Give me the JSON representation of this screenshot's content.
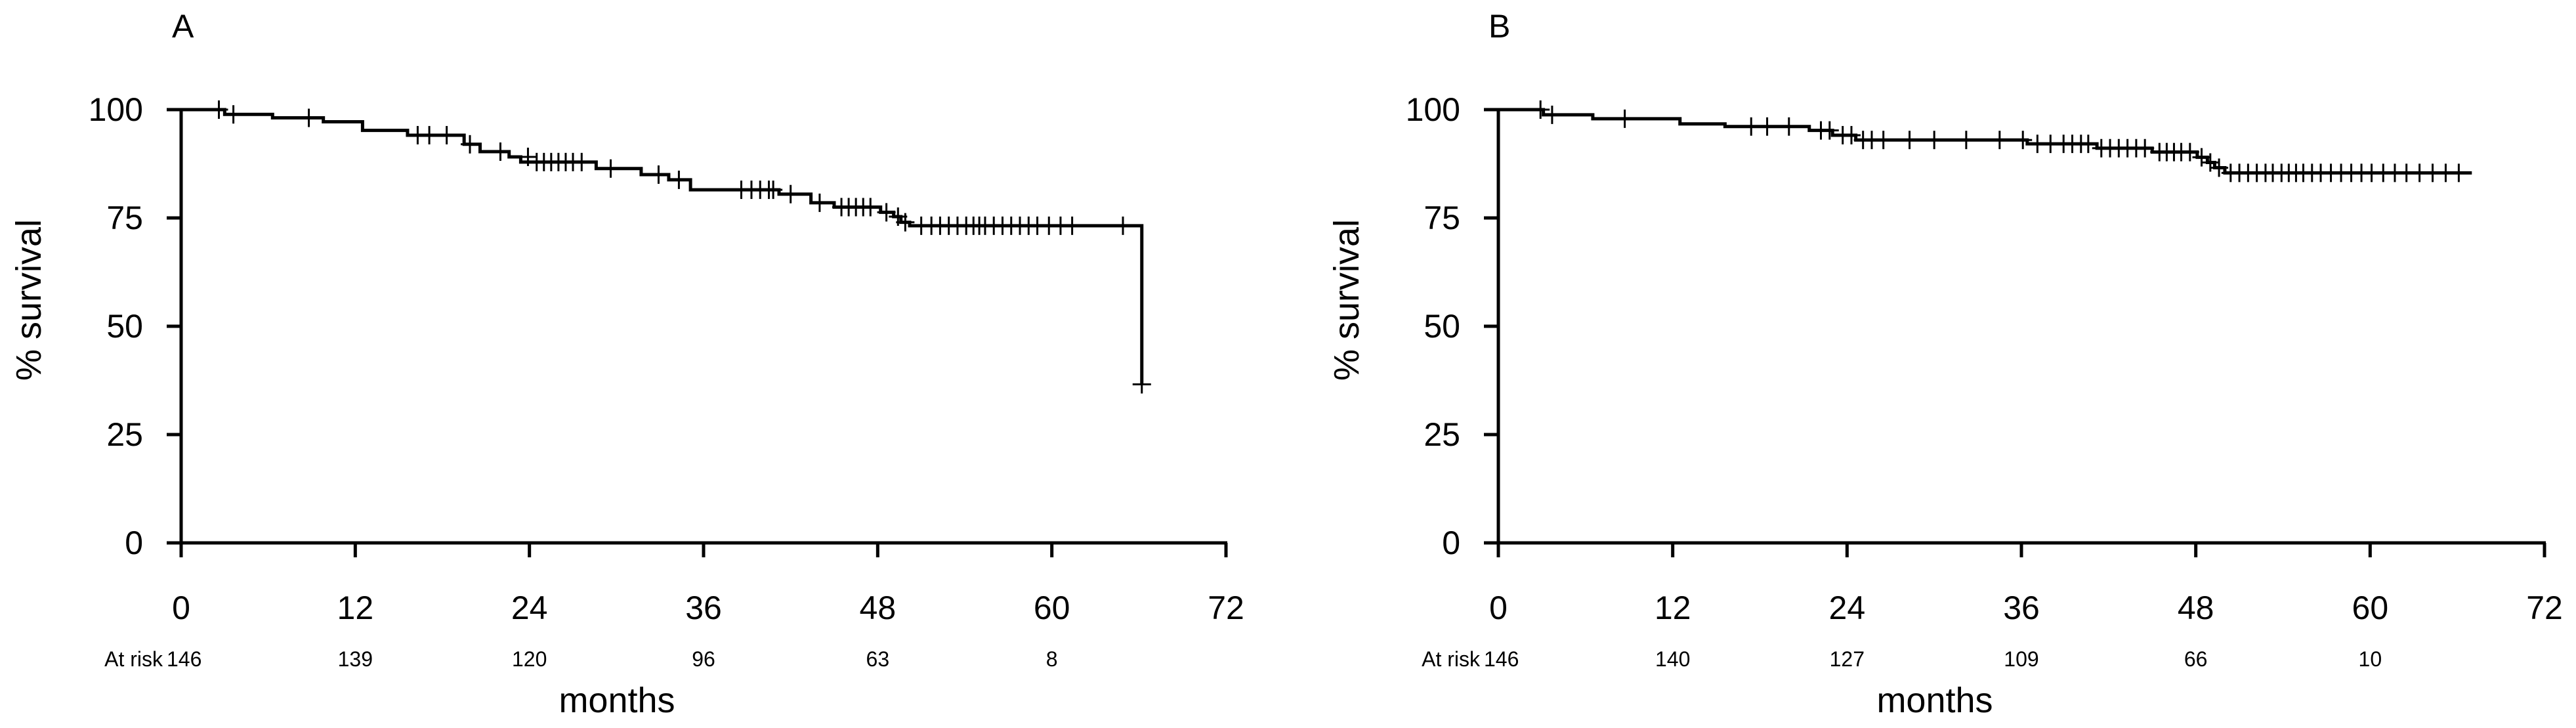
{
  "chart_data": [
    {
      "type": "line",
      "panel_label": "A",
      "ylabel": "% survival",
      "xlabel": "months",
      "xlim": [
        0,
        72
      ],
      "ylim": [
        0,
        100
      ],
      "x_ticks": [
        0,
        12,
        24,
        36,
        48,
        60,
        72
      ],
      "y_ticks": [
        0,
        25,
        50,
        75,
        100
      ],
      "risk_label": "At risk",
      "at_risk": [
        {
          "x": 0,
          "n": "146"
        },
        {
          "x": 12,
          "n": "139"
        },
        {
          "x": 24,
          "n": "120"
        },
        {
          "x": 36,
          "n": "96"
        },
        {
          "x": 48,
          "n": "63"
        },
        {
          "x": 60,
          "n": "8"
        }
      ],
      "steps": [
        [
          0,
          100
        ],
        [
          3.0,
          98.9
        ],
        [
          6.3,
          98.1
        ],
        [
          9.8,
          97.2
        ],
        [
          12.5,
          95.2
        ],
        [
          15.6,
          94.1
        ],
        [
          19.5,
          92.0
        ],
        [
          20.6,
          90.3
        ],
        [
          22.6,
          89.1
        ],
        [
          23.4,
          87.9
        ],
        [
          28.6,
          86.4
        ],
        [
          31.7,
          85.0
        ],
        [
          33.6,
          83.8
        ],
        [
          35.1,
          81.5
        ],
        [
          41.2,
          80.5
        ],
        [
          43.4,
          78.5
        ],
        [
          45.0,
          77.5
        ],
        [
          48.2,
          76.3
        ],
        [
          49.1,
          75.3
        ],
        [
          49.6,
          74.0
        ],
        [
          50.2,
          73.2
        ],
        [
          66.2,
          36.6
        ]
      ],
      "end_x": 66.2,
      "censor_marks": [
        [
          2.6,
          100
        ],
        [
          3.6,
          98.9
        ],
        [
          8.8,
          98.1
        ],
        [
          16.3,
          94.1
        ],
        [
          17.1,
          94.1
        ],
        [
          18.3,
          94.1
        ],
        [
          19.9,
          92.0
        ],
        [
          22.0,
          90.3
        ],
        [
          23.9,
          89.1
        ],
        [
          24.5,
          87.9
        ],
        [
          25.0,
          87.9
        ],
        [
          25.5,
          87.9
        ],
        [
          26.0,
          87.9
        ],
        [
          26.5,
          87.9
        ],
        [
          27.0,
          87.9
        ],
        [
          27.6,
          87.9
        ],
        [
          29.6,
          86.4
        ],
        [
          32.9,
          85.0
        ],
        [
          34.3,
          83.8
        ],
        [
          38.6,
          81.5
        ],
        [
          39.3,
          81.5
        ],
        [
          39.9,
          81.5
        ],
        [
          40.5,
          81.5
        ],
        [
          40.8,
          81.5
        ],
        [
          42.0,
          80.5
        ],
        [
          44.0,
          78.5
        ],
        [
          45.5,
          77.5
        ],
        [
          46.0,
          77.5
        ],
        [
          46.5,
          77.5
        ],
        [
          47.0,
          77.5
        ],
        [
          47.5,
          77.5
        ],
        [
          48.6,
          76.3
        ],
        [
          49.4,
          75.3
        ],
        [
          49.9,
          74.0
        ],
        [
          51.0,
          73.2
        ],
        [
          51.7,
          73.2
        ],
        [
          52.3,
          73.2
        ],
        [
          52.9,
          73.2
        ],
        [
          53.5,
          73.2
        ],
        [
          54.1,
          73.2
        ],
        [
          54.6,
          73.2
        ],
        [
          55.0,
          73.2
        ],
        [
          55.4,
          73.2
        ],
        [
          56.0,
          73.2
        ],
        [
          56.6,
          73.2
        ],
        [
          57.2,
          73.2
        ],
        [
          57.8,
          73.2
        ],
        [
          58.4,
          73.2
        ],
        [
          59.0,
          73.2
        ],
        [
          59.8,
          73.2
        ],
        [
          60.6,
          73.2
        ],
        [
          61.4,
          73.2
        ],
        [
          64.9,
          73.2
        ],
        [
          66.2,
          36.6
        ]
      ]
    },
    {
      "type": "line",
      "panel_label": "B",
      "ylabel": "% survival",
      "xlabel": "months",
      "xlim": [
        0,
        72
      ],
      "ylim": [
        0,
        100
      ],
      "x_ticks": [
        0,
        12,
        24,
        36,
        48,
        60,
        72
      ],
      "y_ticks": [
        0,
        25,
        50,
        75,
        100
      ],
      "risk_label": "At risk",
      "at_risk": [
        {
          "x": 0,
          "n": "146"
        },
        {
          "x": 12,
          "n": "140"
        },
        {
          "x": 24,
          "n": "127"
        },
        {
          "x": 36,
          "n": "109"
        },
        {
          "x": 48,
          "n": "66"
        },
        {
          "x": 60,
          "n": "10"
        }
      ],
      "steps": [
        [
          0,
          100
        ],
        [
          3.1,
          98.8
        ],
        [
          6.5,
          97.9
        ],
        [
          12.5,
          96.7
        ],
        [
          15.6,
          96.1
        ],
        [
          21.4,
          95.2
        ],
        [
          23.0,
          94.1
        ],
        [
          24.6,
          93.0
        ],
        [
          36.4,
          92.1
        ],
        [
          41.2,
          91.1
        ],
        [
          45.0,
          90.2
        ],
        [
          48.1,
          89.0
        ],
        [
          48.8,
          87.8
        ],
        [
          49.3,
          86.6
        ],
        [
          50.0,
          85.4
        ]
      ],
      "end_x": 67.0,
      "censor_marks": [
        [
          2.9,
          100
        ],
        [
          3.7,
          98.8
        ],
        [
          8.7,
          97.9
        ],
        [
          17.4,
          96.1
        ],
        [
          18.5,
          96.1
        ],
        [
          20.0,
          96.1
        ],
        [
          22.2,
          95.2
        ],
        [
          22.8,
          95.2
        ],
        [
          23.7,
          94.1
        ],
        [
          24.3,
          94.1
        ],
        [
          25.1,
          93.0
        ],
        [
          25.7,
          93.0
        ],
        [
          26.5,
          93.0
        ],
        [
          28.3,
          93.0
        ],
        [
          30.0,
          93.0
        ],
        [
          32.2,
          93.0
        ],
        [
          34.5,
          93.0
        ],
        [
          36.1,
          93.0
        ],
        [
          37.1,
          92.1
        ],
        [
          38.0,
          92.1
        ],
        [
          38.9,
          92.1
        ],
        [
          39.5,
          92.1
        ],
        [
          40.1,
          92.1
        ],
        [
          40.6,
          92.1
        ],
        [
          41.5,
          91.1
        ],
        [
          42.1,
          91.1
        ],
        [
          42.7,
          91.1
        ],
        [
          43.3,
          91.1
        ],
        [
          43.9,
          91.1
        ],
        [
          44.5,
          91.1
        ],
        [
          45.5,
          90.2
        ],
        [
          46.0,
          90.2
        ],
        [
          46.5,
          90.2
        ],
        [
          47.0,
          90.2
        ],
        [
          47.6,
          90.2
        ],
        [
          48.4,
          89.0
        ],
        [
          49.0,
          87.8
        ],
        [
          49.6,
          86.6
        ],
        [
          50.4,
          85.4
        ],
        [
          51.0,
          85.4
        ],
        [
          51.6,
          85.4
        ],
        [
          52.2,
          85.4
        ],
        [
          52.8,
          85.4
        ],
        [
          53.3,
          85.4
        ],
        [
          53.9,
          85.4
        ],
        [
          54.4,
          85.4
        ],
        [
          54.9,
          85.4
        ],
        [
          55.4,
          85.4
        ],
        [
          56.0,
          85.4
        ],
        [
          56.6,
          85.4
        ],
        [
          57.3,
          85.4
        ],
        [
          58.0,
          85.4
        ],
        [
          58.7,
          85.4
        ],
        [
          59.4,
          85.4
        ],
        [
          60.1,
          85.4
        ],
        [
          60.9,
          85.4
        ],
        [
          61.7,
          85.4
        ],
        [
          62.5,
          85.4
        ],
        [
          63.4,
          85.4
        ],
        [
          64.3,
          85.4
        ],
        [
          65.2,
          85.4
        ],
        [
          66.1,
          85.4
        ]
      ]
    }
  ]
}
